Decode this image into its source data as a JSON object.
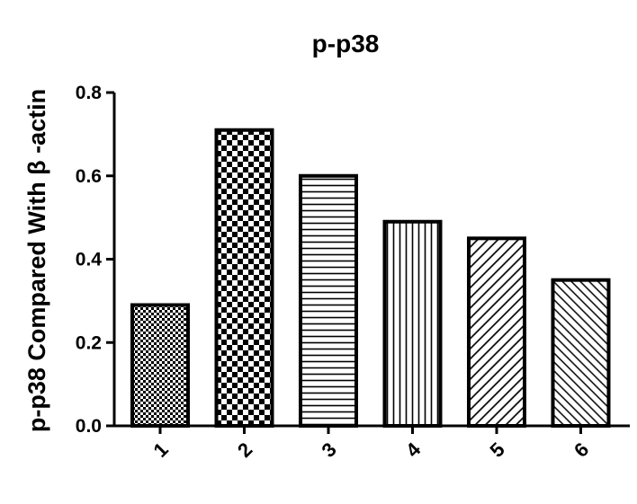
{
  "chart_data": {
    "type": "bar",
    "title": "p-p38",
    "xlabel": "",
    "ylabel": "p-p38 Compared With β -actin",
    "categories": [
      "1",
      "2",
      "3",
      "4",
      "5",
      "6"
    ],
    "values": [
      0.29,
      0.71,
      0.6,
      0.49,
      0.45,
      0.35
    ],
    "ylim": [
      0,
      0.8
    ],
    "yticks": [
      "0.0",
      "0.2",
      "0.4",
      "0.6",
      "0.8"
    ],
    "grid": false,
    "legend": "none",
    "bar_patterns": [
      "fine-checker",
      "checker",
      "horizontal-lines",
      "vertical-lines",
      "diagonal-lines",
      "diagonal-lines-dense"
    ],
    "colors": {
      "ink": "#000000",
      "background": "#ffffff"
    }
  }
}
